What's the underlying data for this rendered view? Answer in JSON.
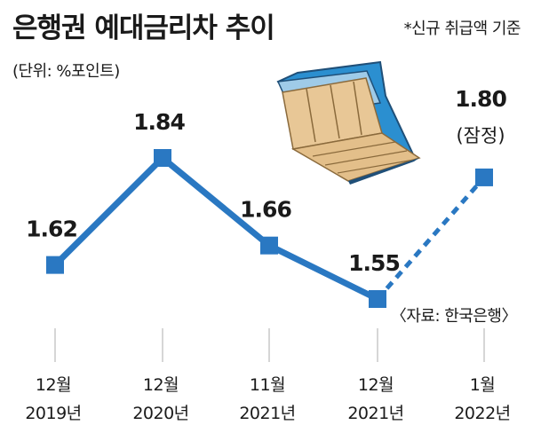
{
  "header": {
    "title": "은행권 예대금리차 추이",
    "note": "*신규 취급액 기준",
    "unit": "(단위: %포인트)"
  },
  "source": "〈자료: 한국은행〉",
  "colors": {
    "line": "#2a78c2",
    "marker": "#2a78c2",
    "grid": "#c9c9c9",
    "wallet_outer": "#2b8fd0",
    "wallet_inner": "#e8c796",
    "wallet_edge": "#1f4f78"
  },
  "chart_data": {
    "type": "line",
    "title": "은행권 예대금리차 추이",
    "ylabel": "%포인트",
    "grid": "vertical",
    "categories": [
      {
        "line1": "12월",
        "line2": "2019년"
      },
      {
        "line1": "12월",
        "line2": "2020년"
      },
      {
        "line1": "11월",
        "line2": "2021년"
      },
      {
        "line1": "12월",
        "line2": "2021년"
      },
      {
        "line1": "1월",
        "line2": "2022년"
      }
    ],
    "values": [
      1.62,
      1.84,
      1.66,
      1.55,
      1.8
    ],
    "labels": [
      "1.62",
      "1.84",
      "1.66",
      "1.55",
      "1.80"
    ],
    "provisional": {
      "index": 4,
      "label": "(잠정)",
      "segment_style": "dashed"
    }
  }
}
